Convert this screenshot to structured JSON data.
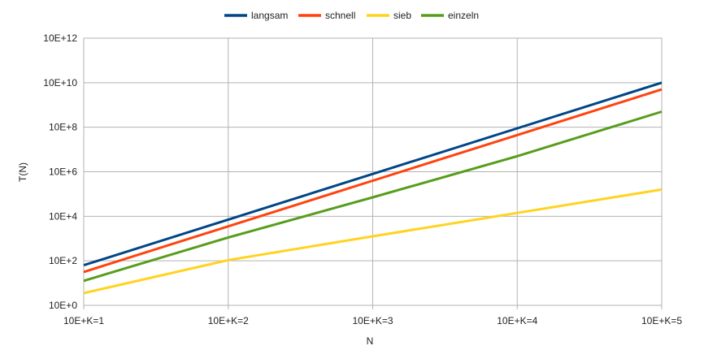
{
  "chart_data": {
    "type": "line",
    "title": "",
    "xlabel": "N",
    "ylabel": "T(N)",
    "x": [
      1,
      2,
      3,
      4,
      5
    ],
    "x_tick_labels": [
      "10E+K=1",
      "10E+K=2",
      "10E+K=3",
      "10E+K=4",
      "10E+K=5"
    ],
    "y_scale": "log10",
    "ylim_exp": [
      0,
      12
    ],
    "y_tick_exponents": [
      0,
      2,
      4,
      6,
      8,
      10,
      12
    ],
    "y_tick_labels": [
      "10E+0",
      "10E+2",
      "10E+4",
      "10E+6",
      "10E+8",
      "10E+10",
      "10E+12"
    ],
    "grid": true,
    "legend_position": "top",
    "series": [
      {
        "name": "langsam",
        "color": "#004586",
        "log10_values": [
          1.8,
          3.85,
          5.9,
          7.95,
          10.0
        ]
      },
      {
        "name": "schnell",
        "color": "#ff420e",
        "log10_values": [
          1.5,
          3.55,
          5.6,
          7.65,
          9.7
        ]
      },
      {
        "name": "sieb",
        "color": "#ffd320",
        "log10_values": [
          0.55,
          2.03,
          3.1,
          4.15,
          5.2
        ]
      },
      {
        "name": "einzeln",
        "color": "#579d1c",
        "log10_values": [
          1.1,
          3.05,
          4.85,
          6.7,
          8.7
        ]
      }
    ]
  }
}
